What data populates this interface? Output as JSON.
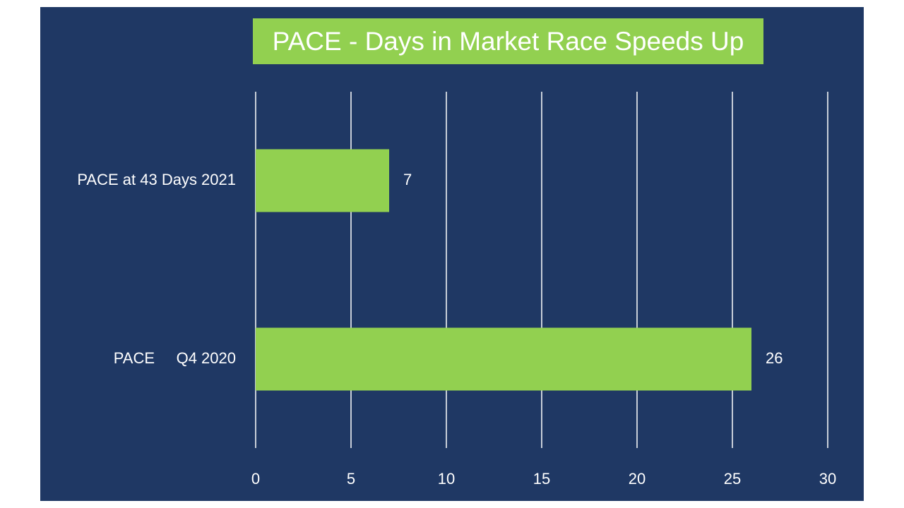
{
  "chart_data": {
    "type": "bar",
    "orientation": "horizontal",
    "title": "PACE - Days in Market Race Speeds Up",
    "categories": [
      "PACE at 43 Days 2021",
      "PACE     Q4 2020"
    ],
    "values": [
      7,
      26
    ],
    "data_labels": [
      "7",
      "26"
    ],
    "xlabel": "",
    "ylabel": "",
    "xlim": [
      0,
      30
    ],
    "xticks": [
      0,
      5,
      10,
      15,
      20,
      25,
      30
    ],
    "xtick_labels": [
      "0",
      "5",
      "10",
      "15",
      "20",
      "25",
      "30"
    ],
    "grid": true,
    "legend": "none"
  },
  "colors": {
    "background": "#1f3864",
    "bar": "#92d050",
    "title_box": "#92d050",
    "text": "#ffffff",
    "gridline": "#ffffff"
  }
}
